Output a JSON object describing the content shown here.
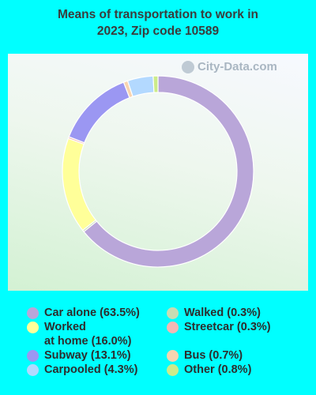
{
  "title_line1": "Means of transportation to work in",
  "title_line2": "2023, Zip code 10589",
  "watermark": "City-Data.com",
  "chart_data": {
    "type": "pie",
    "style": "donut",
    "slices": [
      {
        "label": "Car alone",
        "value": 63.5,
        "color": "#b9a6d9",
        "legend": "Car alone (63.5%)"
      },
      {
        "label": "Walked",
        "value": 0.3,
        "color": "#c8dcb3",
        "legend": "Walked (0.3%)"
      },
      {
        "label": "Worked at home",
        "value": 16.0,
        "color": "#ffff99",
        "legend": "Worked\nat home (16.0%)"
      },
      {
        "label": "Streetcar",
        "value": 0.3,
        "color": "#f4b8b4",
        "legend": "Streetcar (0.3%)"
      },
      {
        "label": "Subway",
        "value": 13.1,
        "color": "#9b97f2",
        "legend": "Subway (13.1%)"
      },
      {
        "label": "Bus",
        "value": 0.7,
        "color": "#f8d4b0",
        "legend": "Bus (0.7%)"
      },
      {
        "label": "Carpooled",
        "value": 4.3,
        "color": "#b3d9ff",
        "legend": "Carpooled (4.3%)"
      },
      {
        "label": "Other",
        "value": 0.8,
        "color": "#cceb8a",
        "legend": "Other (0.8%)"
      }
    ],
    "draw_order": [
      "Car alone",
      "Walked",
      "Worked at home",
      "Streetcar",
      "Subway",
      "Bus",
      "Carpooled",
      "Other"
    ],
    "legend_columns": [
      [
        "Car alone",
        "Worked at home",
        "Subway",
        "Carpooled"
      ],
      [
        "Walked",
        "Streetcar",
        "Bus",
        "Other"
      ]
    ]
  }
}
